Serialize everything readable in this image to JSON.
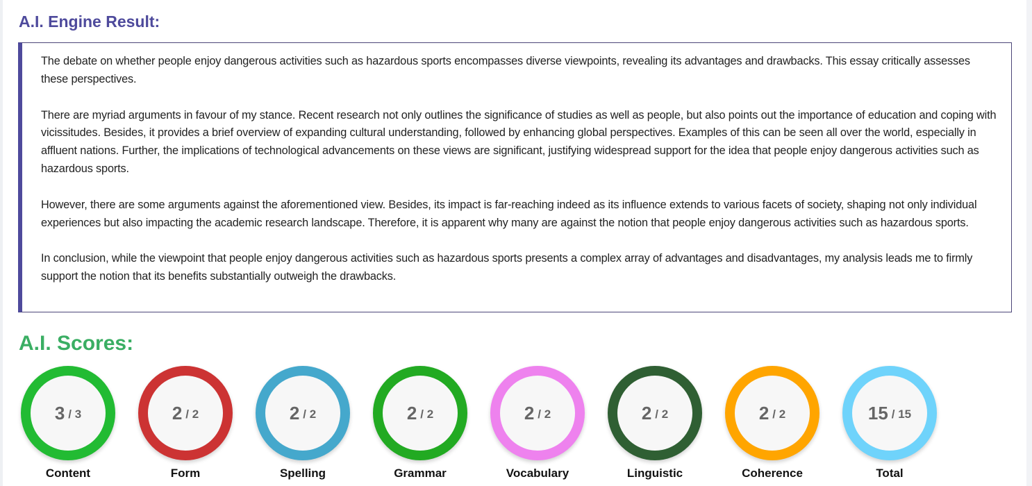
{
  "result": {
    "title": "A.I. Engine Result:",
    "paragraphs": [
      "The debate on whether people enjoy dangerous activities such as hazardous sports encompasses diverse viewpoints, revealing its advantages and drawbacks. This essay critically assesses these perspectives.",
      "There are myriad arguments in favour of my stance. Recent research not only outlines the significance of studies as well as people, but also points out the importance of education and coping with vicissitudes. Besides, it provides a brief overview of expanding cultural understanding, followed by enhancing global perspectives. Examples of this can be seen all over the world, especially in affluent nations. Further, the implications of technological advancements on these views are significant, justifying widespread support for the idea that people enjoy dangerous activities such as hazardous sports.",
      "However, there are some arguments against the aforementioned view. Besides, its impact is far-reaching indeed as its influence extends to various facets of society, shaping not only individual experiences but also impacting the academic research landscape. Therefore, it is apparent why many are against the notion that people enjoy dangerous activities such as hazardous sports.",
      "In conclusion, while the viewpoint that people enjoy dangerous activities such as hazardous sports presents a complex array of advantages and disadvantages, my analysis leads me to firmly support the notion that its benefits substantially outweigh the drawbacks."
    ]
  },
  "scores": {
    "title": "A.I. Scores:",
    "items": [
      {
        "label": "Content",
        "score": "3",
        "max": "/ 3",
        "color": "#22bb33"
      },
      {
        "label": "Form",
        "score": "2",
        "max": "/ 2",
        "color": "#cc3333"
      },
      {
        "label": "Spelling",
        "score": "2",
        "max": "/ 2",
        "color": "#45a8cc"
      },
      {
        "label": "Grammar",
        "score": "2",
        "max": "/ 2",
        "color": "#22aa22"
      },
      {
        "label": "Vocabulary",
        "score": "2",
        "max": "/ 2",
        "color": "#ee82ee"
      },
      {
        "label": "Linguistic",
        "score": "2",
        "max": "/ 2",
        "color": "#2f5f33"
      },
      {
        "label": "Coherence",
        "score": "2",
        "max": "/ 2",
        "color": "#ffa500"
      },
      {
        "label": "Total",
        "score": "15",
        "max": "/ 15",
        "color": "#6fd3fb"
      }
    ]
  }
}
